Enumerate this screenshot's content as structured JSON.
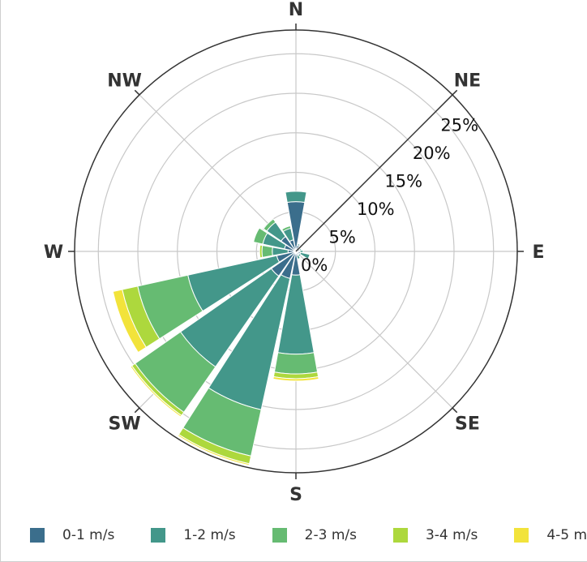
{
  "chart_data": {
    "type": "windrose",
    "directions": [
      "N",
      "NNE",
      "NE",
      "ENE",
      "E",
      "ESE",
      "SE",
      "SSE",
      "S",
      "SSW",
      "SW",
      "WSW",
      "W",
      "WNW",
      "NW",
      "NNW"
    ],
    "compass_labels": [
      "N",
      "NE",
      "E",
      "SE",
      "S",
      "SW",
      "W",
      "NW"
    ],
    "radial_ticks": [
      "0%",
      "5%",
      "10%",
      "15%",
      "20%",
      "25%"
    ],
    "radial_tick_values": [
      0,
      5,
      10,
      15,
      20,
      25
    ],
    "rmax": 28,
    "series": [
      {
        "name": "0-1 m/s",
        "color": "#3b6e8c",
        "values": [
          6.3,
          0.8,
          0.5,
          0.5,
          0.5,
          0.6,
          0.5,
          0.5,
          3.0,
          3.5,
          3.8,
          2.5,
          1.0,
          1.5,
          2.3,
          1.5
        ]
      },
      {
        "name": "1-2 m/s",
        "color": "#43978a",
        "values": [
          1.3,
          0.2,
          0.2,
          0.2,
          0.4,
          1.2,
          0.3,
          0.5,
          10.0,
          17.0,
          14.0,
          11.5,
          2.0,
          2.8,
          2.2,
          1.5
        ]
      },
      {
        "name": "2-3 m/s",
        "color": "#66bb72",
        "values": [
          0,
          0,
          0,
          0,
          0,
          0,
          0,
          0,
          2.5,
          6.0,
          7.0,
          6.5,
          1.3,
          1.2,
          0.5,
          0.3
        ]
      },
      {
        "name": "3-4 m/s",
        "color": "#add83d",
        "values": [
          0,
          0,
          0,
          0,
          0,
          0,
          0,
          0,
          0.6,
          1.0,
          0.5,
          2.0,
          0.3,
          0,
          0,
          0
        ]
      },
      {
        "name": "4-5 m/s",
        "color": "#f2e33b",
        "values": [
          0,
          0,
          0,
          0,
          0,
          0,
          0,
          0,
          0.3,
          0.2,
          0.2,
          1.2,
          0,
          0,
          0,
          0
        ]
      }
    ]
  }
}
